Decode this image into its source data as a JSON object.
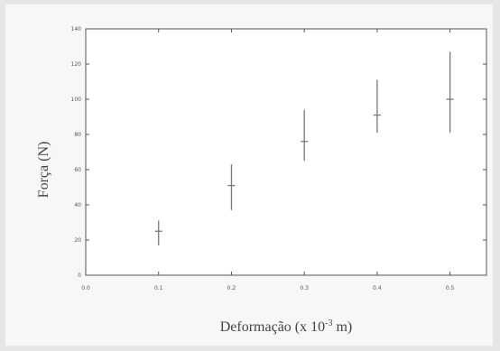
{
  "chart_data": {
    "type": "scatter",
    "xlabel": "Deformação (x 10",
    "xlabel_exponent": "-3",
    "xlabel_unit": " m)",
    "ylabel": "Força (N)",
    "xlim": [
      0.0,
      0.55
    ],
    "ylim": [
      0,
      140
    ],
    "xticks": [
      "0.0",
      "0.1",
      "0.2",
      "0.3",
      "0.4",
      "0.5"
    ],
    "yticks": [
      "0",
      "20",
      "40",
      "60",
      "80",
      "100",
      "120",
      "140"
    ],
    "grid": false,
    "points": [
      {
        "x": 0.1,
        "y": 25,
        "ymin": 17,
        "ymax": 31
      },
      {
        "x": 0.2,
        "y": 51,
        "ymin": 37,
        "ymax": 63
      },
      {
        "x": 0.3,
        "y": 76,
        "ymin": 65,
        "ymax": 94
      },
      {
        "x": 0.4,
        "y": 91,
        "ymin": 81,
        "ymax": 111
      },
      {
        "x": 0.5,
        "y": 100,
        "ymin": 81,
        "ymax": 127
      }
    ],
    "colors": {
      "axis": "#555555",
      "marker": "#777777",
      "background": "#ffffff"
    }
  }
}
